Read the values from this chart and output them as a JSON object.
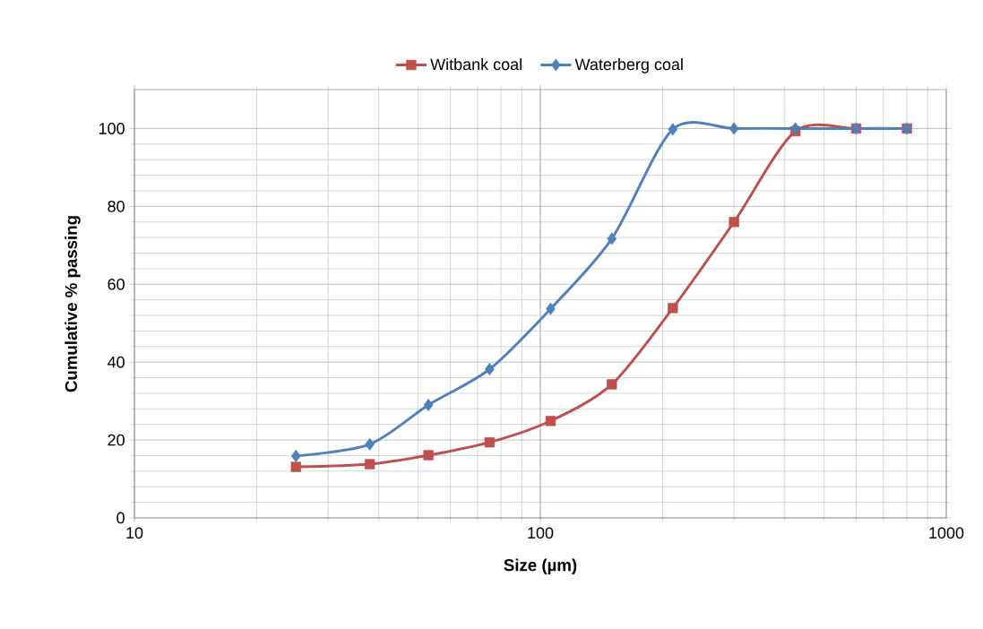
{
  "chart_data": {
    "type": "line",
    "xlabel": "Size (µm)",
    "ylabel": "Cumulative % passing",
    "x": [
      25,
      38,
      53,
      75,
      106,
      150,
      212,
      300,
      425,
      600,
      800
    ],
    "series": [
      {
        "name": "Witbank coal",
        "color": "#c0504d",
        "marker": "square",
        "values": [
          13.1,
          13.8,
          16.1,
          19.4,
          24.9,
          34.3,
          53.9,
          76.0,
          99.3,
          100,
          100
        ]
      },
      {
        "name": "Waterberg coal",
        "color": "#4f81bd",
        "marker": "diamond",
        "values": [
          15.9,
          18.9,
          29.0,
          38.2,
          53.7,
          71.7,
          99.8,
          100,
          100,
          100,
          100
        ]
      }
    ],
    "log": "x",
    "xlim": [
      10,
      1000
    ],
    "xticks": [
      10,
      100,
      1000
    ],
    "ylim": [
      0,
      110
    ],
    "yticks": [
      0,
      20,
      40,
      60,
      80,
      100
    ],
    "grid": true,
    "legend": "top",
    "line_style": "solid"
  }
}
